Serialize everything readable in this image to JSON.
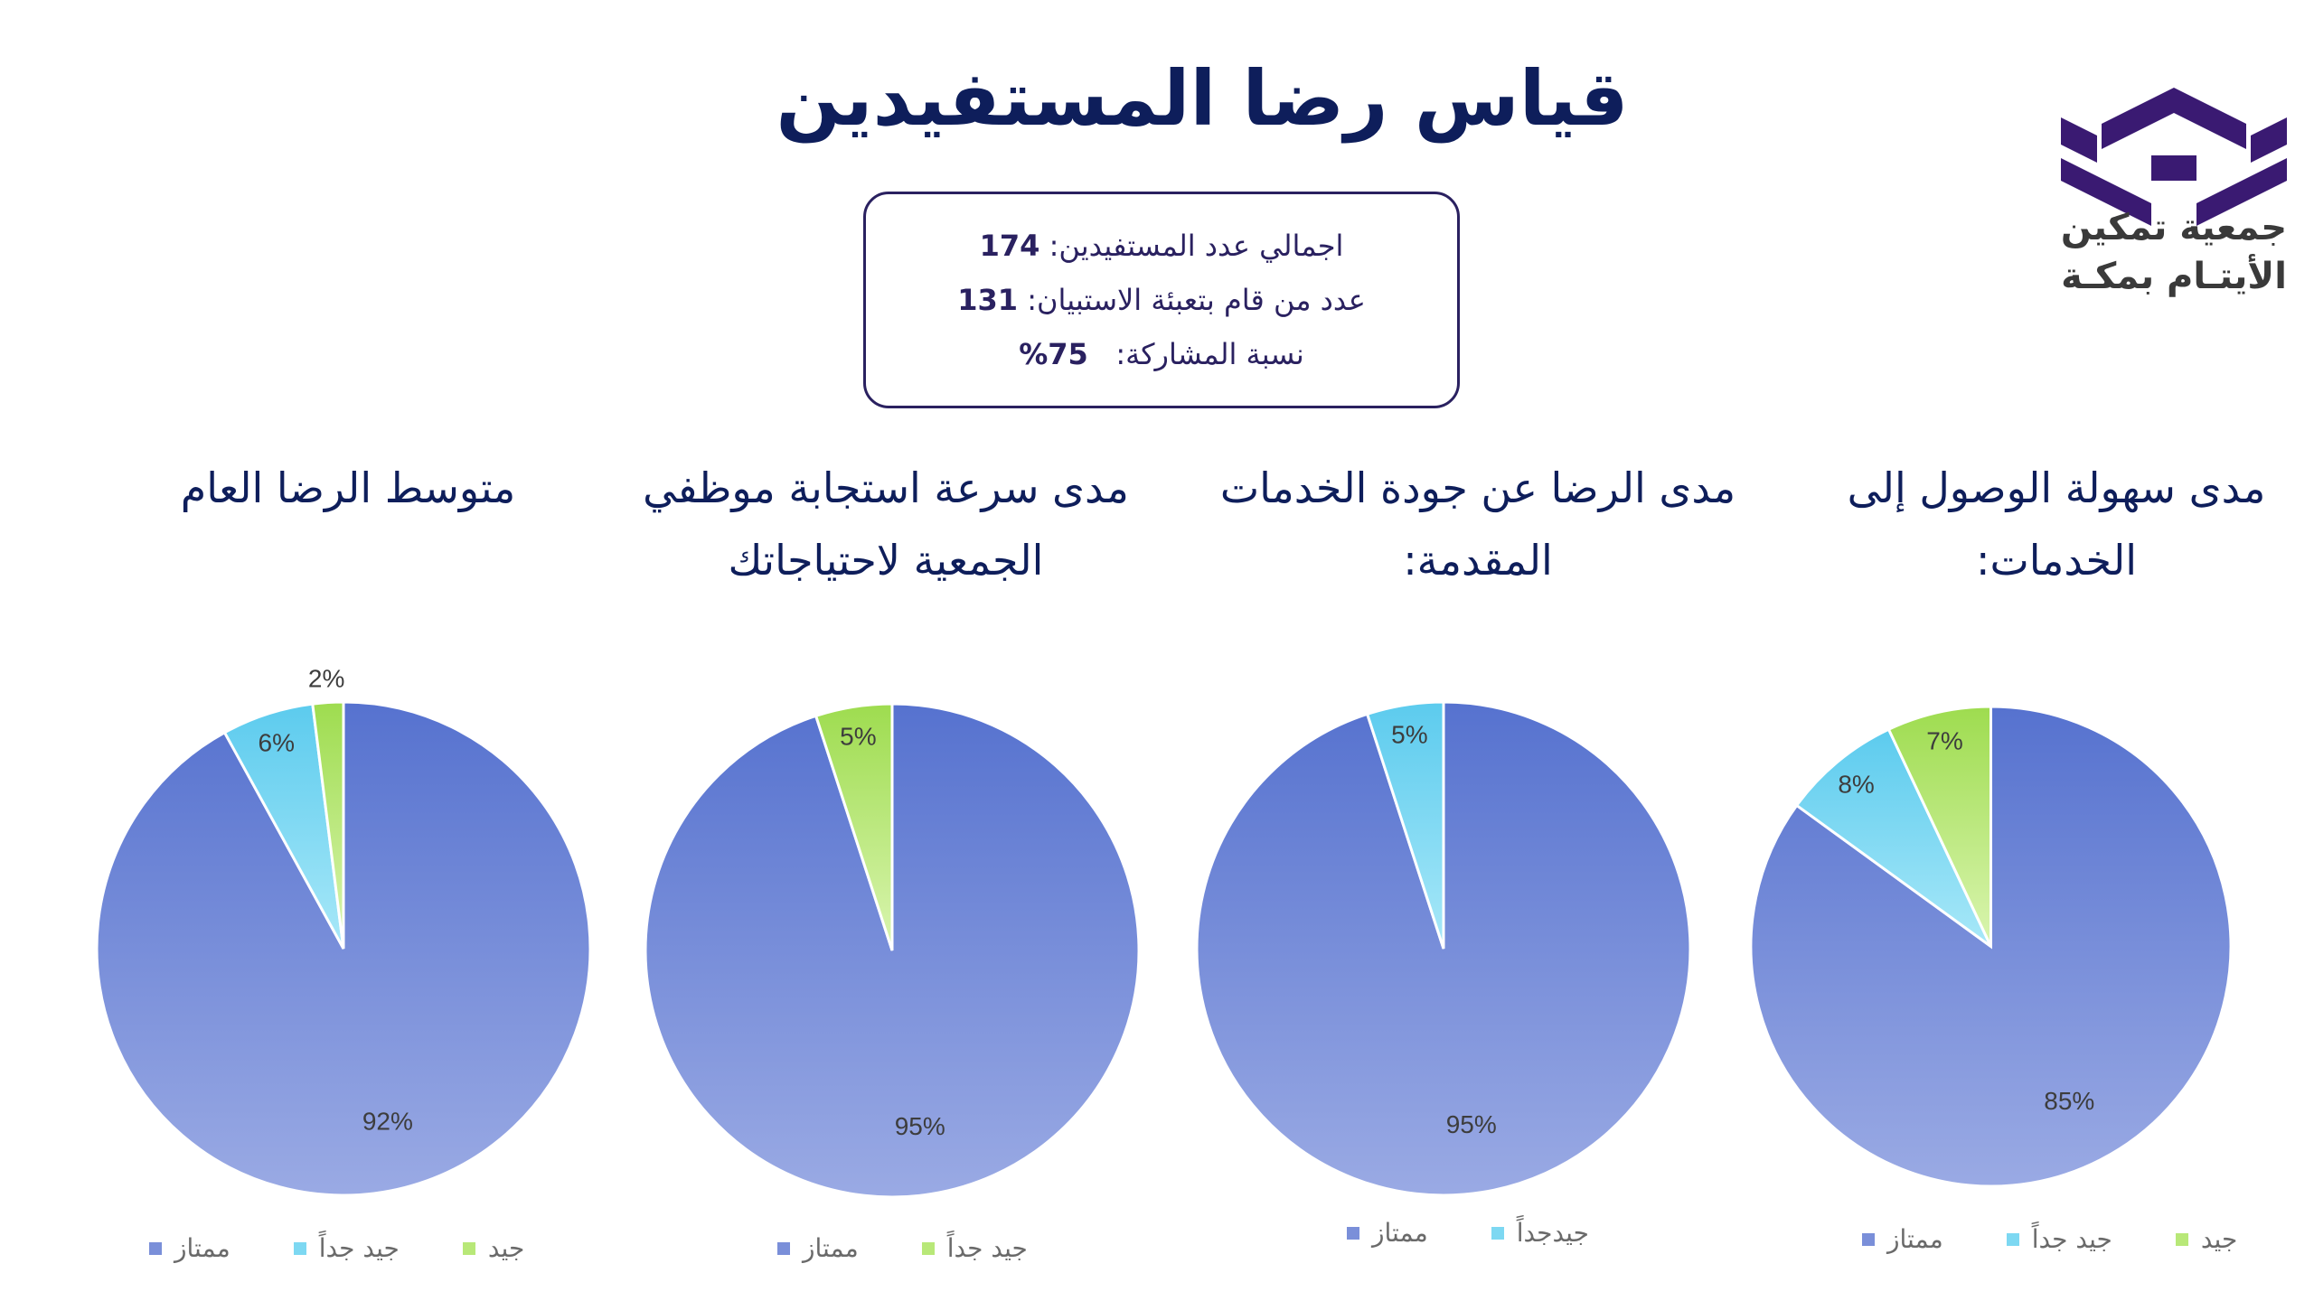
{
  "page": {
    "title": "قياس رضا المستفيدين",
    "stats": [
      {
        "label": "اجمالي عدد المستفيدين:",
        "value": "174"
      },
      {
        "label": "عدد من قام بتعبئة الاستبيان:",
        "value": "131"
      },
      {
        "label": "نسبة المشاركة:",
        "value": "75%"
      }
    ],
    "logo": {
      "line1": "جمعية تمكين",
      "line2": "الأيتـام بمكـة",
      "color": "#3a1a72"
    }
  },
  "colors": {
    "excellent": "#7a8fd9",
    "very_good": "#7dd8f2",
    "good": "#b8e878"
  },
  "chart_data": [
    {
      "type": "pie",
      "title": "متوسط الرضا العام",
      "series": [
        {
          "name": "ممتاز",
          "value": 92,
          "label": "92%",
          "color": "excellent"
        },
        {
          "name": "جيد جداً",
          "value": 6,
          "label": "6%",
          "color": "very_good"
        },
        {
          "name": "جيد",
          "value": 2,
          "label": "2%",
          "color": "good"
        }
      ],
      "legend": [
        "ممتاز",
        "جيد جداً",
        "جيد"
      ]
    },
    {
      "type": "pie",
      "title": "مدى سرعة استجابة موظفي الجمعية لاحتياجاتك",
      "series": [
        {
          "name": "ممتاز",
          "value": 95,
          "label": "95%",
          "color": "excellent"
        },
        {
          "name": "جيد جداً",
          "value": 5,
          "label": "5%",
          "color": "good"
        }
      ],
      "legend": [
        "ممتاز",
        "جيد جداً"
      ]
    },
    {
      "type": "pie",
      "title": "مدى الرضا عن جودة الخدمات المقدمة:",
      "series": [
        {
          "name": "ممتاز",
          "value": 95,
          "label": "95%",
          "color": "excellent"
        },
        {
          "name": "جيدجداً",
          "value": 5,
          "label": "5%",
          "color": "very_good"
        }
      ],
      "legend": [
        "ممتاز",
        "جيدجداً"
      ]
    },
    {
      "type": "pie",
      "title": "مدى سهولة الوصول إلى الخدمات:",
      "series": [
        {
          "name": "ممتاز",
          "value": 85,
          "label": "85%",
          "color": "excellent"
        },
        {
          "name": "جيد جداً",
          "value": 8,
          "label": "8%",
          "color": "very_good"
        },
        {
          "name": "جيد",
          "value": 7,
          "label": "7%",
          "color": "good"
        }
      ],
      "legend": [
        "ممتاز",
        "جيد جداً",
        "جيد"
      ]
    }
  ]
}
